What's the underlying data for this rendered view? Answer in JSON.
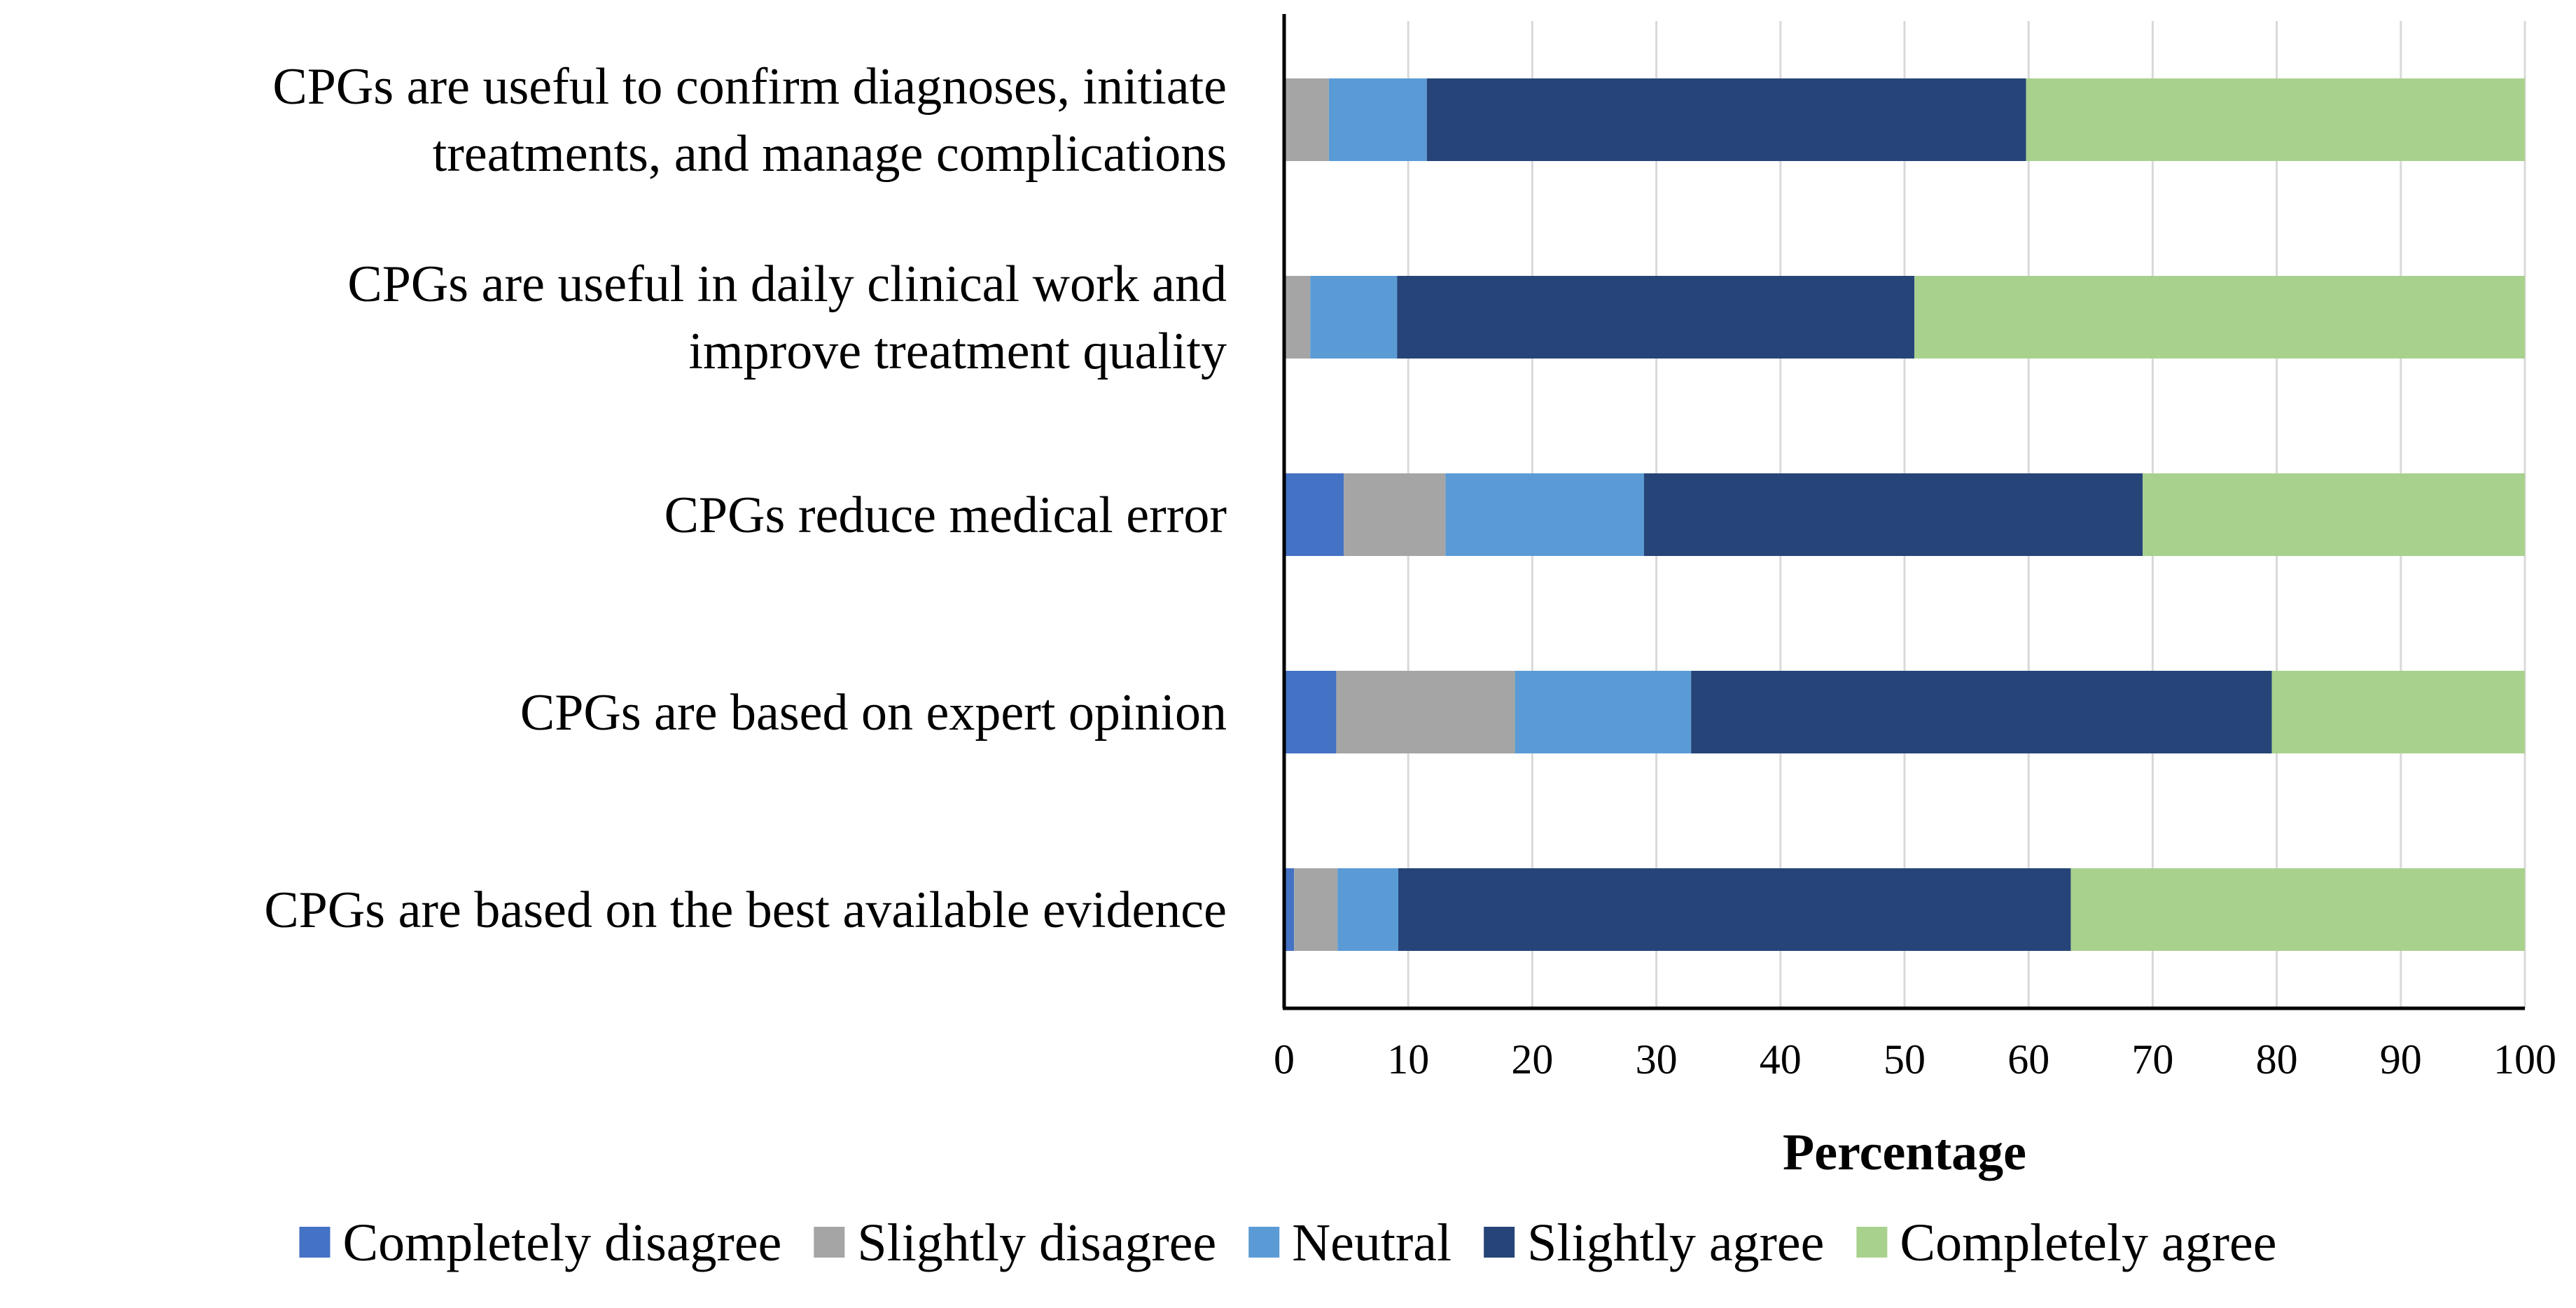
{
  "chart_data": {
    "type": "bar",
    "orientation": "horizontal",
    "stacked": true,
    "categories": [
      "CPGs are useful to confirm diagnoses, initiate treatments, and manage complications",
      "CPGs are useful in daily clinical work and improve treatment quality",
      "CPGs reduce medical error",
      "CPGs are based on expert opinion",
      "CPGs are based on the best available evidence"
    ],
    "category_lines": [
      [
        "CPGs are useful to confirm diagnoses, initiate",
        "treatments, and manage complications"
      ],
      [
        "CPGs are useful in daily clinical work and",
        "improve treatment quality"
      ],
      [
        "CPGs reduce medical error"
      ],
      [
        "CPGs are based on expert opinion"
      ],
      [
        "CPGs are based on the best available evidence"
      ]
    ],
    "series": [
      {
        "name": "Completely disagree",
        "color": "#4472c4",
        "values": [
          0,
          0,
          4.8,
          4.2,
          0.8
        ]
      },
      {
        "name": "Slightly disagree",
        "color": "#a5a5a5",
        "values": [
          3.6,
          2.1,
          8.2,
          14.4,
          3.5
        ]
      },
      {
        "name": "Neutral",
        "color": "#5b9bd5",
        "values": [
          7.9,
          7.0,
          16.0,
          14.2,
          4.9
        ]
      },
      {
        "name": "Slightly agree",
        "color": "#264478",
        "values": [
          48.3,
          41.7,
          40.2,
          46.8,
          54.2
        ]
      },
      {
        "name": "Completely agree",
        "color": "#a9d18e",
        "values": [
          40.2,
          49.2,
          30.8,
          20.4,
          36.6
        ]
      }
    ],
    "xlabel": "Percentage",
    "ylabel": "",
    "xlim": [
      0,
      100
    ],
    "xticks": [
      "0",
      "10",
      "20",
      "30",
      "40",
      "50",
      "60",
      "70",
      "80",
      "90",
      "100"
    ],
    "grid": "vertical",
    "legend": "bottom"
  }
}
